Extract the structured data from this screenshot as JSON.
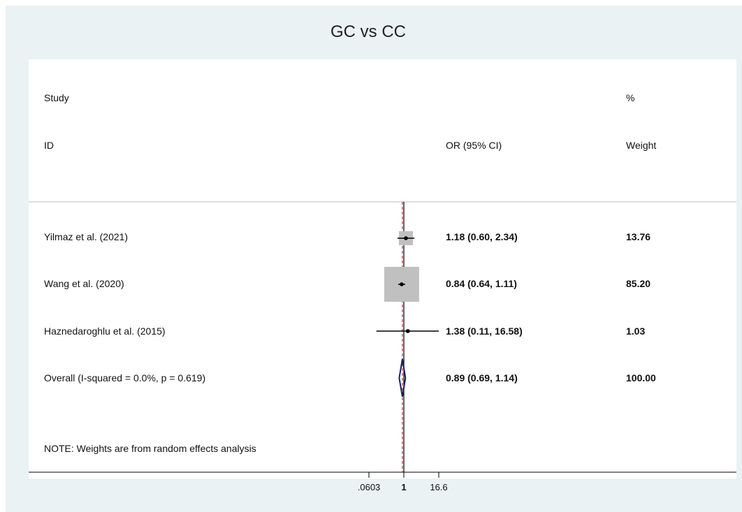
{
  "chart_data": {
    "type": "forest",
    "title": "GC vs CC",
    "headers": {
      "study_line1": "Study",
      "study_line2": "ID",
      "or_label": "OR (95% CI)",
      "weight_line1": "%",
      "weight_line2": "Weight"
    },
    "studies": [
      {
        "label": "Yilmaz et al. (2021)",
        "or": 1.18,
        "lo": 0.6,
        "hi": 2.34,
        "or_text": "1.18 (0.60, 2.34)",
        "weight": 13.76,
        "weight_text": "13.76"
      },
      {
        "label": "Wang et al. (2020)",
        "or": 0.84,
        "lo": 0.64,
        "hi": 1.11,
        "or_text": "0.84 (0.64, 1.11)",
        "weight": 85.2,
        "weight_text": "85.20"
      },
      {
        "label": "Haznedaroghlu et al. (2015)",
        "or": 1.38,
        "lo": 0.11,
        "hi": 16.58,
        "or_text": "1.38 (0.11, 16.58)",
        "weight": 1.03,
        "weight_text": "1.03"
      }
    ],
    "overall": {
      "label": "Overall  (I-squared = 0.0%, p = 0.619)",
      "or": 0.89,
      "lo": 0.69,
      "hi": 1.14,
      "or_text": "0.89 (0.69, 1.14)",
      "weight_text": "100.00"
    },
    "note": "NOTE: Weights are from random effects analysis",
    "x_scale": "log",
    "x_ticks": [
      {
        "value": 0.0603,
        "label": ".0603"
      },
      {
        "value": 1,
        "label": "1"
      },
      {
        "value": 16.6,
        "label": "16.6"
      }
    ],
    "colors": {
      "background": "#eaf2f3",
      "box": "#c0c0c0",
      "diamond": "#1b1f5e",
      "overall_line": "#b23a3a",
      "null_line": "#000000"
    }
  }
}
